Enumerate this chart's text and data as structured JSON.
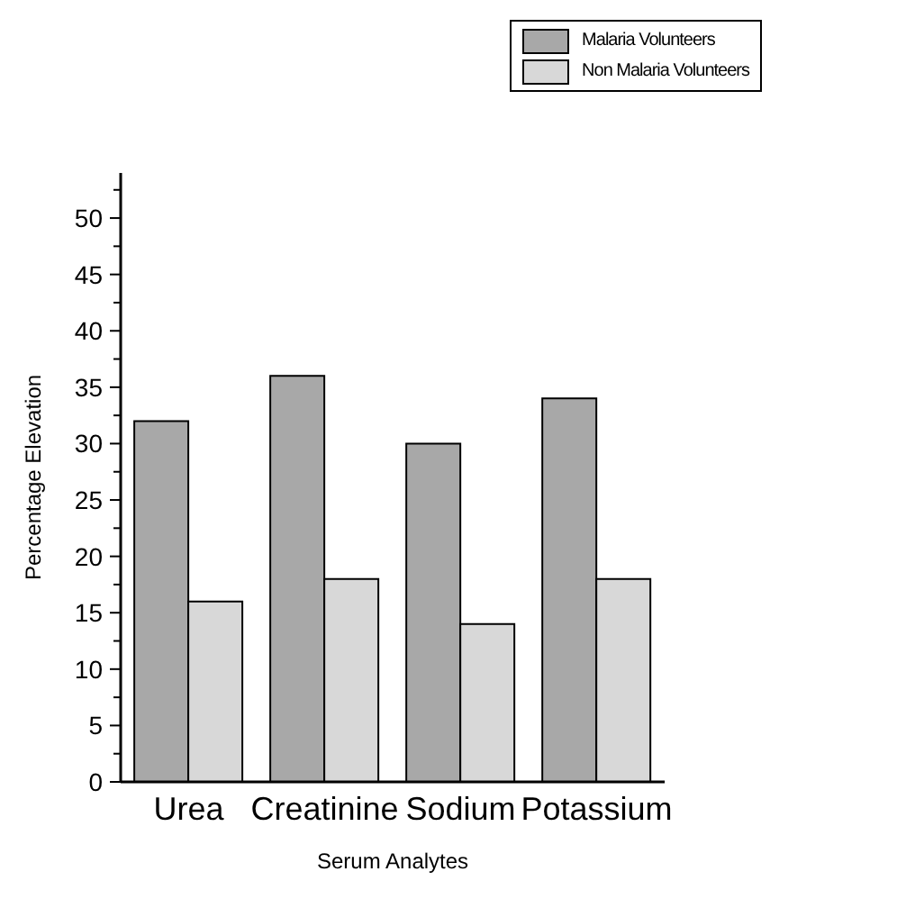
{
  "chart_data": {
    "type": "bar",
    "xlabel": "Serum Analytes",
    "ylabel": "Percentage Elevation",
    "categories": [
      "Urea",
      "Creatinine",
      "Sodium",
      "Potassium"
    ],
    "series": [
      {
        "name": "Malaria Volunteers",
        "color": "#a8a8a8",
        "values": [
          32,
          36,
          30,
          34
        ]
      },
      {
        "name": "Non Malaria Volunteers",
        "color": "#d8d8d8",
        "values": [
          16,
          18,
          14,
          18
        ]
      }
    ],
    "ylim": [
      0,
      54
    ],
    "yticks": [
      0,
      {
        "value": 2.5,
        "label": null
      },
      5,
      {
        "value": 7.5,
        "label": null
      },
      10,
      {
        "value": 12.5,
        "label": null
      },
      15,
      {
        "value": 17.5,
        "label": null
      },
      20,
      {
        "value": 22.5,
        "label": null
      },
      25,
      {
        "value": 27.5,
        "label": null
      },
      30,
      {
        "value": 32.5,
        "label": null
      },
      35,
      {
        "value": 37.5,
        "label": null
      },
      40,
      {
        "value": 42.5,
        "label": null
      },
      45,
      {
        "value": 47.5,
        "label": null
      },
      50,
      {
        "value": 52.5,
        "label": null
      }
    ],
    "grid": false,
    "legend": "top right"
  }
}
